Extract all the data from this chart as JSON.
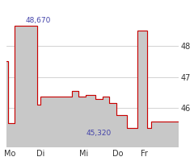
{
  "title": "",
  "x_labels": [
    "Mo",
    "Di",
    "Mi",
    "Do",
    "Fr"
  ],
  "y_ticks": [
    46,
    47,
    48
  ],
  "y_lim": [
    44.7,
    49.4
  ],
  "x_lim": [
    0,
    100
  ],
  "peak_label": "48,670",
  "low_label": "45,320",
  "line_color": "#cc0000",
  "fill_color": "#c8c8c8",
  "background_color": "#ffffff",
  "grid_color": "#c0c0c0",
  "label_color": "#4444aa",
  "steps": [
    [
      0,
      47.5
    ],
    [
      0,
      47.5
    ],
    [
      1,
      47.5
    ],
    [
      1,
      45.5
    ],
    [
      5,
      45.5
    ],
    [
      5,
      48.67
    ],
    [
      18,
      48.67
    ],
    [
      18,
      46.1
    ],
    [
      20,
      46.1
    ],
    [
      20,
      46.35
    ],
    [
      38,
      46.35
    ],
    [
      38,
      46.55
    ],
    [
      42,
      46.55
    ],
    [
      42,
      46.35
    ],
    [
      46,
      46.35
    ],
    [
      46,
      46.42
    ],
    [
      52,
      46.42
    ],
    [
      52,
      46.28
    ],
    [
      56,
      46.28
    ],
    [
      56,
      46.35
    ],
    [
      60,
      46.35
    ],
    [
      60,
      46.15
    ],
    [
      64,
      46.15
    ],
    [
      64,
      45.75
    ],
    [
      70,
      45.75
    ],
    [
      70,
      45.32
    ],
    [
      76,
      45.32
    ],
    [
      76,
      48.5
    ],
    [
      82,
      48.5
    ],
    [
      82,
      45.32
    ],
    [
      84,
      45.32
    ],
    [
      84,
      45.55
    ],
    [
      100,
      45.55
    ]
  ],
  "x_tick_positions": [
    2,
    20,
    45,
    65,
    80
  ],
  "peak_x": 10,
  "peak_y": 48.67,
  "low_x": 62,
  "low_y": 45.32
}
